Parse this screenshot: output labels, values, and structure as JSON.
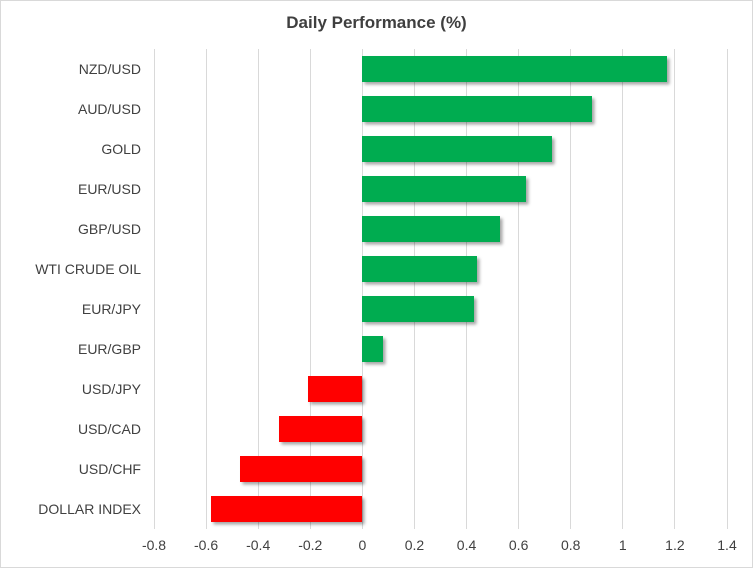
{
  "chart": {
    "title": "Daily Performance (%)"
  },
  "chart_data": {
    "type": "bar",
    "orientation": "horizontal",
    "title": "Daily Performance (%)",
    "categories": [
      "NZD/USD",
      "AUD/USD",
      "GOLD",
      "EUR/USD",
      "GBP/USD",
      "WTI CRUDE OIL",
      "EUR/JPY",
      "EUR/GBP",
      "USD/JPY",
      "USD/CAD",
      "USD/CHF",
      "DOLLAR INDEX"
    ],
    "values": [
      1.17,
      0.88,
      0.73,
      0.63,
      0.53,
      0.44,
      0.43,
      0.08,
      -0.21,
      -0.32,
      -0.47,
      -0.58
    ],
    "xlabel": "",
    "ylabel": "",
    "xlim": [
      -0.8,
      1.4
    ],
    "xticks": [
      -0.8,
      -0.6,
      -0.4,
      -0.2,
      0,
      0.2,
      0.4,
      0.6,
      0.8,
      1,
      1.2,
      1.4
    ],
    "xtick_labels": [
      "-0.8",
      "-0.6",
      "-0.4",
      "-0.2",
      "0",
      "0.2",
      "0.4",
      "0.6",
      "0.8",
      "1",
      "1.2",
      "1.4"
    ],
    "grid": true,
    "legend": false,
    "colors": {
      "positive_bar": "#00AC50",
      "negative_bar": "#FF0000",
      "gridline": "#D9D9D9",
      "text": "#404040",
      "title_text": "#3F3F3F",
      "border": "#D9D9D9",
      "background": "#FFFFFF"
    }
  }
}
